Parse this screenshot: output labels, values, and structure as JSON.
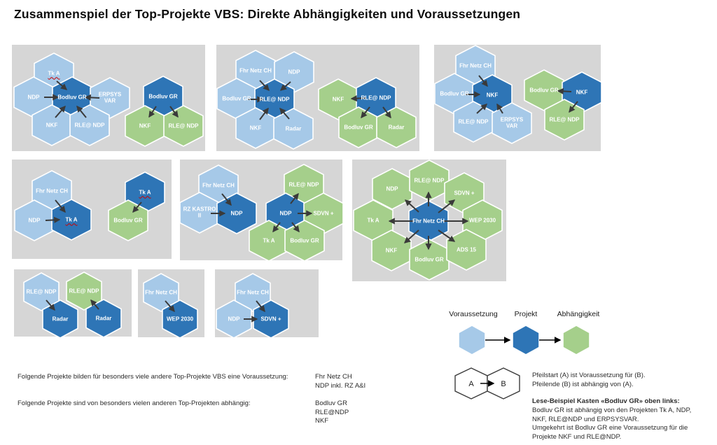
{
  "title": "Zusammenspiel der Top-Projekte VBS: Direkte Abhängigkeiten und Voraussetzungen",
  "colors": {
    "prerequisite_light_blue": "#a6c9e8",
    "project_dark_blue": "#2e75b6",
    "dependency_green": "#a5cf8b",
    "box_background_gray": "#d6d6d6",
    "arrow": "#3a3a3a",
    "misspell_underline_red": "#cc0000"
  },
  "boxes": [
    {
      "hexes": [
        {
          "label": "Tk A",
          "type": "light"
        },
        {
          "label": "NDP",
          "type": "light"
        },
        {
          "label": "Bodluv GR",
          "type": "dark"
        },
        {
          "label": "ERPSYS VAR",
          "type": "light"
        },
        {
          "label": "NKF",
          "type": "light"
        },
        {
          "label": "RLE@ NDP",
          "type": "light"
        },
        {
          "label": "Bodluv GR",
          "type": "dark"
        },
        {
          "label": "NKF",
          "type": "green"
        },
        {
          "label": "RLE@ NDP",
          "type": "green"
        }
      ]
    },
    {
      "hexes": [
        {
          "label": "Fhr Netz CH",
          "type": "light"
        },
        {
          "label": "NDP",
          "type": "light"
        },
        {
          "label": "Bodluv GR",
          "type": "light"
        },
        {
          "label": "RLE@ NDP",
          "type": "dark"
        },
        {
          "label": "NKF",
          "type": "light"
        },
        {
          "label": "Radar",
          "type": "light"
        },
        {
          "label": "NKF",
          "type": "green"
        },
        {
          "label": "RLE@ NDP",
          "type": "dark"
        },
        {
          "label": "Bodluv GR",
          "type": "green"
        },
        {
          "label": "Radar",
          "type": "green"
        }
      ]
    },
    {
      "hexes": [
        {
          "label": "Fhr Netz CH",
          "type": "light"
        },
        {
          "label": "Bodluv GR",
          "type": "light"
        },
        {
          "label": "NKF",
          "type": "dark"
        },
        {
          "label": "RLE@ NDP",
          "type": "light"
        },
        {
          "label": "ERPSYS VAR",
          "type": "light"
        },
        {
          "label": "Bodluv GR",
          "type": "green"
        },
        {
          "label": "NKF",
          "type": "dark"
        },
        {
          "label": "RLE@ NDP",
          "type": "green"
        }
      ]
    },
    {
      "hexes": [
        {
          "label": "Fhr Netz CH",
          "type": "light"
        },
        {
          "label": "NDP",
          "type": "light"
        },
        {
          "label": "Tk A",
          "type": "dark"
        },
        {
          "label": "Tk A",
          "type": "dark"
        },
        {
          "label": "Bodluv GR",
          "type": "green"
        }
      ]
    },
    {
      "hexes": [
        {
          "label": "Fhr Netz CH",
          "type": "light"
        },
        {
          "label": "RZ KASTRO II",
          "type": "light"
        },
        {
          "label": "NDP",
          "type": "dark"
        },
        {
          "label": "RLE@ NDP",
          "type": "green"
        },
        {
          "label": "NDP",
          "type": "dark"
        },
        {
          "label": "SDVN +",
          "type": "green"
        },
        {
          "label": "Tk A",
          "type": "green"
        },
        {
          "label": "Bodluv GR",
          "type": "green"
        }
      ]
    },
    {
      "hexes": [
        {
          "label": "NDP",
          "type": "green"
        },
        {
          "label": "RLE@ NDP",
          "type": "green"
        },
        {
          "label": "SDVN +",
          "type": "green"
        },
        {
          "label": "Tk A",
          "type": "green"
        },
        {
          "label": "Fhr Netz CH",
          "type": "dark"
        },
        {
          "label": "WEP 2030",
          "type": "green"
        },
        {
          "label": "NKF",
          "type": "green"
        },
        {
          "label": "Bodluv GR",
          "type": "green"
        },
        {
          "label": "ADS 15",
          "type": "green"
        }
      ]
    },
    {
      "hexes": [
        {
          "label": "RLE@ NDP",
          "type": "light"
        },
        {
          "label": "Radar",
          "type": "dark"
        },
        {
          "label": "RLE@ NDP",
          "type": "green"
        },
        {
          "label": "Radar",
          "type": "dark"
        }
      ]
    },
    {
      "hexes": [
        {
          "label": "Fhr Netz CH",
          "type": "light"
        },
        {
          "label": "WEP 2030",
          "type": "dark"
        }
      ]
    },
    {
      "hexes": [
        {
          "label": "Fhr Netz CH",
          "type": "light"
        },
        {
          "label": "NDP",
          "type": "light"
        },
        {
          "label": "SDVN +",
          "type": "dark"
        }
      ]
    }
  ],
  "legend": {
    "prerequisite": "Voraussetzung",
    "project": "Projekt",
    "dependency": "Abhängigkeit"
  },
  "example": {
    "a": "A",
    "b": "B",
    "explanation": "Pfeilstart (A) ist Voraussetzung für (B).\nPfeilende (B) ist abhängig von (A)."
  },
  "reading_example": {
    "heading": "Lese-Beispiel Kasten «Bodluv GR» oben links:",
    "body": "Bodluv GR ist abhängig von den Projekten Tk A, NDP,\nNKF, RLE@NDP und ERPSYSVAR.\nUmgekehrt ist Bodluv GR eine Voraussetzung für die\nProjekte NKF und RLE@NDP."
  },
  "summary": {
    "q1": "Folgende Projekte bilden für besonders viele andere Top-Projekte VBS eine Voraussetzung:",
    "a1": "Fhr Netz CH\nNDP inkl. RZ A&I",
    "q2": "Folgende Projekte sind von besonders vielen anderen Top-Projekten abhängig:",
    "a2": "Bodluv GR\nRLE@NDP\nNKF"
  }
}
